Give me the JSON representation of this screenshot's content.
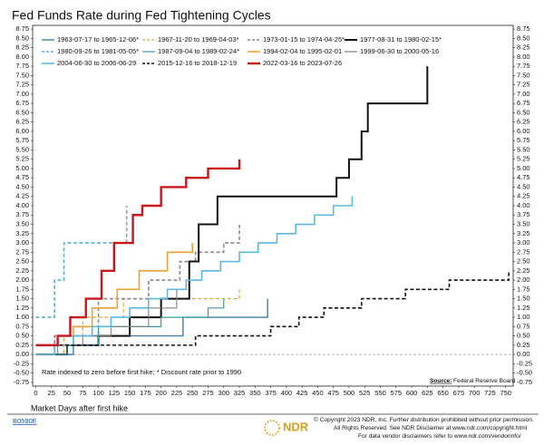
{
  "chart_data": {
    "type": "step",
    "title": "Fed Funds Rate during Fed Tightening Cycles",
    "xlabel": "Market Days after first hike",
    "note": "Rate indexed to zero before first hike; * Discount rate prior to 1990",
    "source": "Source:",
    "source_name": "Federal Reserve Board",
    "xlim": [
      -5,
      762
    ],
    "ylim": [
      -0.85,
      8.85
    ],
    "xticks": [
      0,
      25,
      50,
      75,
      100,
      125,
      150,
      175,
      200,
      225,
      250,
      275,
      300,
      325,
      350,
      375,
      400,
      425,
      450,
      475,
      500,
      525,
      550,
      575,
      600,
      625,
      650,
      675,
      700,
      725,
      750
    ],
    "yticks": [
      {
        "value": 8.75,
        "label": "8.75"
      },
      {
        "value": 8.5,
        "label": "8.50"
      },
      {
        "value": 8.25,
        "label": "8.25"
      },
      {
        "value": 8,
        "label": "8.00"
      },
      {
        "value": 7.75,
        "label": "7.75"
      },
      {
        "value": 7.5,
        "label": "7.50"
      },
      {
        "value": 7.25,
        "label": "7.25"
      },
      {
        "value": 7,
        "label": "7.00"
      },
      {
        "value": 6.75,
        "label": "6.75"
      },
      {
        "value": 6.5,
        "label": "6.50"
      },
      {
        "value": 6.25,
        "label": "6.25"
      },
      {
        "value": 6,
        "label": "6.00"
      },
      {
        "value": 5.75,
        "label": "5.75"
      },
      {
        "value": 5.5,
        "label": "5.50"
      },
      {
        "value": 5.25,
        "label": "5.25"
      },
      {
        "value": 5,
        "label": "5.00"
      },
      {
        "value": 4.75,
        "label": "4.75"
      },
      {
        "value": 4.5,
        "label": "4.50"
      },
      {
        "value": 4.25,
        "label": "4.25"
      },
      {
        "value": 4,
        "label": "4.00"
      },
      {
        "value": 3.75,
        "label": "3.75"
      },
      {
        "value": 3.5,
        "label": "3.50"
      },
      {
        "value": 3.25,
        "label": "3.25"
      },
      {
        "value": 3,
        "label": "3.00"
      },
      {
        "value": 2.75,
        "label": "2.75"
      },
      {
        "value": 2.5,
        "label": "2.50"
      },
      {
        "value": 2.25,
        "label": "2.25"
      },
      {
        "value": 2,
        "label": "2.00"
      },
      {
        "value": 1.75,
        "label": "1.75"
      },
      {
        "value": 1.5,
        "label": "1.50"
      },
      {
        "value": 1.25,
        "label": "1.25"
      },
      {
        "value": 1,
        "label": "1.00"
      },
      {
        "value": 0.75,
        "label": "0.75"
      },
      {
        "value": 0.5,
        "label": "0.50"
      },
      {
        "value": 0.25,
        "label": "0.25"
      },
      {
        "value": 0,
        "label": "0.00"
      },
      {
        "value": -0.25,
        "label": "-0.25"
      },
      {
        "value": -0.5,
        "label": "-0.50"
      },
      {
        "value": -0.75,
        "label": "-0.75"
      }
    ],
    "zero_line": 0,
    "grid": false,
    "series": [
      {
        "name": "1963-07-17 to 1965-12-06*",
        "color": "#3f7fa6",
        "dash": false,
        "width": 1.4,
        "x": [
          0,
          60,
          125,
          235,
          370
        ],
        "values": [
          0,
          0.5,
          0.5,
          1.0,
          1.5
        ]
      },
      {
        "name": "1967-11-20 to 1969-04-03*",
        "color": "#e5a43a",
        "dash": true,
        "width": 1.2,
        "x": [
          0,
          45,
          75,
          140,
          260,
          325
        ],
        "values": [
          0,
          0.5,
          1.0,
          1.5,
          1.5,
          1.75
        ]
      },
      {
        "name": "1973-01-15 to 1974-04-25*",
        "color": "#8a8a8a",
        "dash": true,
        "width": 1.6,
        "x": [
          0,
          30,
          100,
          180,
          230,
          255,
          300,
          325
        ],
        "values": [
          0,
          0.5,
          1.5,
          2.0,
          2.5,
          2.75,
          3.0,
          3.5
        ]
      },
      {
        "name": "1977-08-31 to 1980-02-15*",
        "color": "#111111",
        "dash": false,
        "width": 2,
        "x": [
          0,
          50,
          100,
          150,
          200,
          245,
          260,
          290,
          470,
          480,
          500,
          520,
          530,
          625
        ],
        "values": [
          0,
          0.25,
          0.5,
          1.0,
          1.5,
          2.5,
          3.5,
          4.25,
          4.25,
          4.75,
          5.25,
          6.0,
          6.75,
          7.75
        ]
      },
      {
        "name": "1980-09-26 to 1981-05-05*",
        "color": "#5aaed8",
        "dash": true,
        "width": 1.6,
        "x": [
          0,
          30,
          45,
          145
        ],
        "values": [
          1.0,
          2.0,
          3.0,
          4.0
        ]
      },
      {
        "name": "1987-09-04 to 1989-02-24*",
        "color": "#3c9aa8",
        "dash": false,
        "width": 1.2,
        "x": [
          0,
          50,
          100,
          200,
          275,
          300
        ],
        "values": [
          0,
          0.25,
          0.75,
          1.0,
          1.25,
          1.5
        ]
      },
      {
        "name": "1994-02-04 to 1995-02-01",
        "color": "#f0a030",
        "dash": false,
        "width": 1.6,
        "x": [
          0,
          30,
          60,
          90,
          130,
          165,
          210,
          250
        ],
        "values": [
          0,
          0.25,
          0.75,
          1.25,
          1.75,
          2.25,
          2.75,
          3.0
        ]
      },
      {
        "name": "1999-06-30 to 2000-05-16",
        "color": "#7a7a7a",
        "dash": false,
        "width": 1,
        "x": [
          0,
          35,
          75,
          120,
          180,
          225
        ],
        "values": [
          0,
          0.25,
          0.5,
          0.75,
          1.25,
          1.75
        ]
      },
      {
        "name": "2004-06-30 to 2006-06-29",
        "color": "#5bb8e0",
        "dash": false,
        "width": 1.6,
        "x": [
          0,
          30,
          60,
          90,
          120,
          150,
          180,
          210,
          240,
          265,
          295,
          325,
          355,
          385,
          415,
          445,
          475,
          505
        ],
        "values": [
          0,
          0.25,
          0.5,
          0.75,
          1.0,
          1.25,
          1.5,
          1.75,
          2.0,
          2.25,
          2.5,
          2.75,
          3.0,
          3.25,
          3.5,
          3.75,
          4.0,
          4.25
        ]
      },
      {
        "name": "2015-12-16 to 2018-12-19",
        "color": "#111111",
        "dash": true,
        "width": 1.6,
        "x": [
          0,
          255,
          375,
          420,
          460,
          520,
          590,
          660,
          755
        ],
        "values": [
          0.25,
          0.5,
          0.75,
          1.0,
          1.25,
          1.5,
          1.75,
          2.0,
          2.25
        ]
      },
      {
        "name": "2022-03-16 to 2023-07-26",
        "color": "#c8161d",
        "dash": false,
        "width": 2.4,
        "x": [
          0,
          35,
          55,
          80,
          105,
          125,
          155,
          170,
          200,
          240,
          275,
          325
        ],
        "values": [
          0.25,
          0.5,
          1.0,
          1.5,
          2.25,
          3.0,
          3.75,
          4.0,
          4.5,
          4.75,
          5.0,
          5.25
        ]
      }
    ]
  },
  "footer": {
    "code": "B0590E",
    "brand": "NDR",
    "lines": [
      "© Copyright 2023 NDR, Inc. Further distribution prohibited without prior permission.",
      "All Rights Reserved. See NDR Disclaimer at www.ndr.com/copyright.html",
      "For data vendor disclaimers refer to www.ndr.com/vendorinfo/"
    ]
  }
}
